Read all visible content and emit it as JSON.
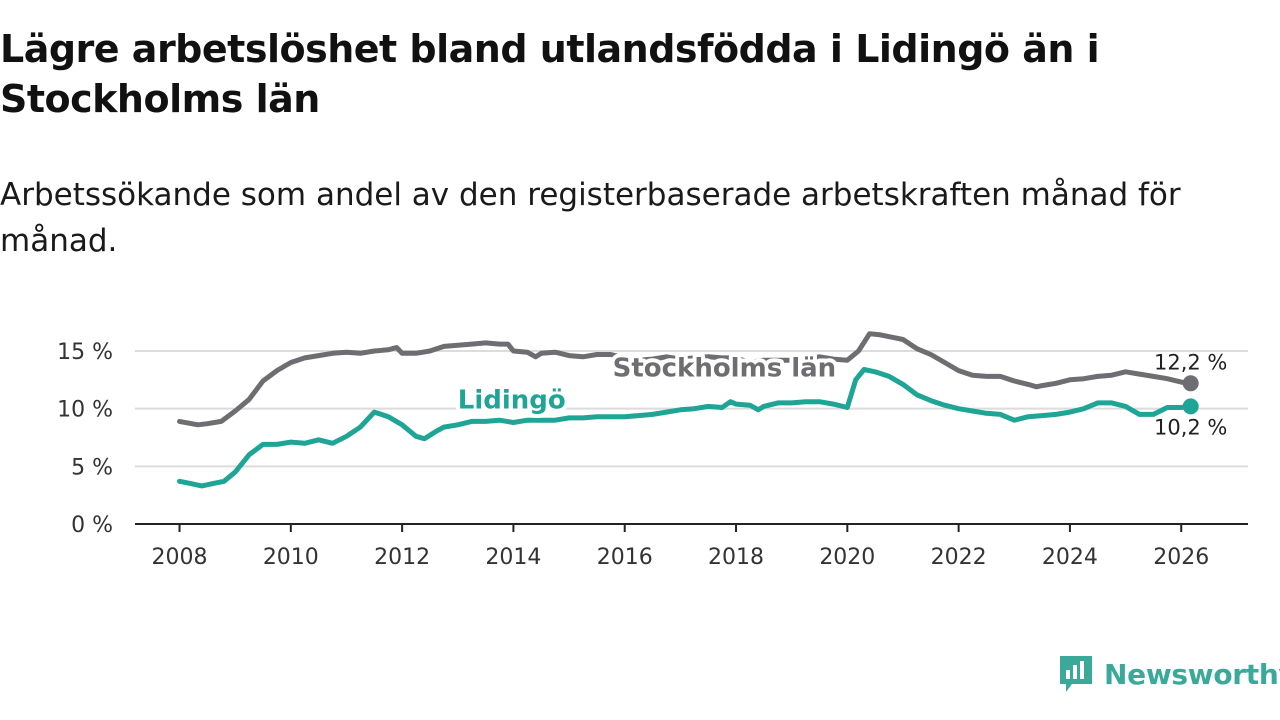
{
  "title": "Lägre arbetslöshet bland utlandsfödda i Lidingö än i Stockholms län",
  "subtitle": "Arbetssökande som andel av den registerbaserade arbetskraften månad för månad.",
  "brand": {
    "name": "Newsworthy",
    "icon": "newsworthy-logo-icon",
    "color": "#3aa99a"
  },
  "chart_data": {
    "type": "line",
    "title": "Lägre arbetslöshet bland utlandsfödda i Lidingö än i Stockholms län",
    "xlabel": "",
    "ylabel": "",
    "xlim": [
      2007.2,
      2027.2
    ],
    "ylim": [
      0,
      15
    ],
    "grid": true,
    "y_ticks": [
      {
        "value": 0,
        "label": "0 %"
      },
      {
        "value": 5,
        "label": "5 %"
      },
      {
        "value": 10,
        "label": "10 %"
      },
      {
        "value": 15,
        "label": "15 %"
      }
    ],
    "x_ticks": [
      {
        "value": 2008,
        "label": "2008"
      },
      {
        "value": 2010,
        "label": "2010"
      },
      {
        "value": 2012,
        "label": "2012"
      },
      {
        "value": 2014,
        "label": "2014"
      },
      {
        "value": 2016,
        "label": "2016"
      },
      {
        "value": 2018,
        "label": "2018"
      },
      {
        "value": 2020,
        "label": "2020"
      },
      {
        "value": 2022,
        "label": "2022"
      },
      {
        "value": 2024,
        "label": "2024"
      },
      {
        "value": 2026,
        "label": "2026"
      }
    ],
    "series": [
      {
        "name": "Stockholms län",
        "color": "#6e6e72",
        "end_label": "12,2 %",
        "x": [
          2008.0,
          2008.33,
          2008.5,
          2008.75,
          2009.0,
          2009.25,
          2009.5,
          2009.75,
          2010.0,
          2010.25,
          2010.5,
          2010.75,
          2011.0,
          2011.25,
          2011.5,
          2011.75,
          2011.9,
          2012.0,
          2012.25,
          2012.5,
          2012.75,
          2013.0,
          2013.25,
          2013.5,
          2013.75,
          2013.9,
          2014.0,
          2014.25,
          2014.4,
          2014.5,
          2014.75,
          2015.0,
          2015.25,
          2015.5,
          2015.75,
          2016.0,
          2016.25,
          2016.5,
          2016.75,
          2017.0,
          2017.25,
          2017.5,
          2017.75,
          2018.0,
          2018.25,
          2018.5,
          2018.75,
          2019.0,
          2019.25,
          2019.5,
          2019.75,
          2020.0,
          2020.2,
          2020.4,
          2020.6,
          2020.8,
          2021.0,
          2021.25,
          2021.5,
          2021.75,
          2022.0,
          2022.25,
          2022.5,
          2022.75,
          2023.0,
          2023.25,
          2023.4,
          2023.5,
          2023.75,
          2024.0,
          2024.25,
          2024.5,
          2024.75,
          2025.0,
          2025.25,
          2025.5,
          2025.75,
          2026.0,
          2026.17
        ],
        "y": [
          8.9,
          8.6,
          8.7,
          8.9,
          9.8,
          10.8,
          12.4,
          13.3,
          14.0,
          14.4,
          14.6,
          14.8,
          14.9,
          14.8,
          15.0,
          15.1,
          15.3,
          14.8,
          14.8,
          15.0,
          15.4,
          15.5,
          15.6,
          15.7,
          15.6,
          15.6,
          15.0,
          14.9,
          14.5,
          14.8,
          14.9,
          14.6,
          14.5,
          14.7,
          14.7,
          14.4,
          14.2,
          14.3,
          14.5,
          14.3,
          14.4,
          14.5,
          14.4,
          14.4,
          14.0,
          14.2,
          14.2,
          14.2,
          14.3,
          14.5,
          14.3,
          14.2,
          15.0,
          16.5,
          16.4,
          16.2,
          16.0,
          15.2,
          14.7,
          14.0,
          13.3,
          12.9,
          12.8,
          12.8,
          12.4,
          12.1,
          11.9,
          12.0,
          12.2,
          12.5,
          12.6,
          12.8,
          12.9,
          13.2,
          13.0,
          12.8,
          12.6,
          12.3,
          12.2
        ]
      },
      {
        "name": "Lidingö",
        "color": "#1fa596",
        "end_label": "10,2 %",
        "x": [
          2008.0,
          2008.2,
          2008.4,
          2008.6,
          2008.8,
          2009.0,
          2009.25,
          2009.5,
          2009.75,
          2010.0,
          2010.25,
          2010.5,
          2010.75,
          2011.0,
          2011.25,
          2011.5,
          2011.75,
          2012.0,
          2012.25,
          2012.4,
          2012.6,
          2012.75,
          2013.0,
          2013.25,
          2013.5,
          2013.75,
          2014.0,
          2014.25,
          2014.5,
          2014.75,
          2015.0,
          2015.25,
          2015.5,
          2015.75,
          2016.0,
          2016.25,
          2016.5,
          2016.75,
          2017.0,
          2017.25,
          2017.5,
          2017.75,
          2017.9,
          2018.0,
          2018.25,
          2018.4,
          2018.5,
          2018.75,
          2019.0,
          2019.25,
          2019.5,
          2019.75,
          2020.0,
          2020.15,
          2020.3,
          2020.5,
          2020.75,
          2021.0,
          2021.25,
          2021.5,
          2021.75,
          2022.0,
          2022.25,
          2022.5,
          2022.75,
          2023.0,
          2023.25,
          2023.5,
          2023.75,
          2024.0,
          2024.25,
          2024.5,
          2024.75,
          2025.0,
          2025.25,
          2025.5,
          2025.75,
          2026.0,
          2026.17
        ],
        "y": [
          3.7,
          3.5,
          3.3,
          3.5,
          3.7,
          4.5,
          6.0,
          6.9,
          6.9,
          7.1,
          7.0,
          7.3,
          7.0,
          7.6,
          8.4,
          9.7,
          9.3,
          8.6,
          7.6,
          7.4,
          8.0,
          8.4,
          8.6,
          8.9,
          8.9,
          9.0,
          8.8,
          9.0,
          9.0,
          9.0,
          9.2,
          9.2,
          9.3,
          9.3,
          9.3,
          9.4,
          9.5,
          9.7,
          9.9,
          10.0,
          10.2,
          10.1,
          10.6,
          10.4,
          10.3,
          9.9,
          10.2,
          10.5,
          10.5,
          10.6,
          10.6,
          10.4,
          10.1,
          12.5,
          13.4,
          13.2,
          12.8,
          12.1,
          11.2,
          10.7,
          10.3,
          10.0,
          9.8,
          9.6,
          9.5,
          9.0,
          9.3,
          9.4,
          9.5,
          9.7,
          10.0,
          10.5,
          10.5,
          10.2,
          9.5,
          9.5,
          10.1,
          10.1,
          10.2
        ]
      }
    ]
  }
}
